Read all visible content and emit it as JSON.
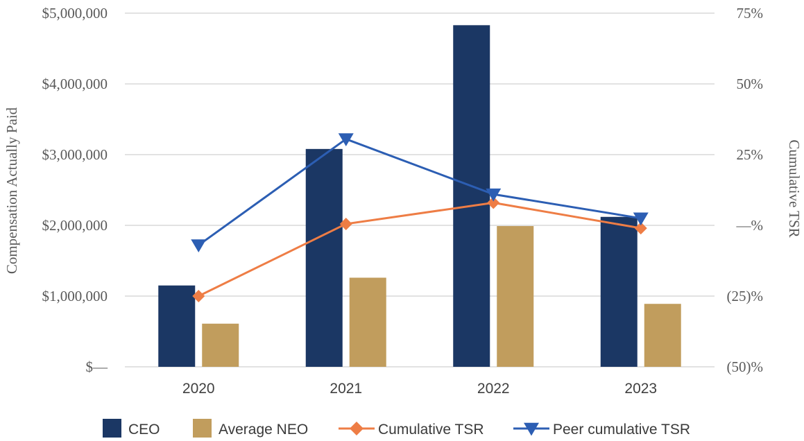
{
  "chart_data": {
    "type": "bar",
    "categories": [
      "2020",
      "2021",
      "2022",
      "2023"
    ],
    "bar_series": [
      {
        "name": "CEO",
        "values": [
          1150000,
          3080000,
          4830000,
          2120000
        ],
        "color": "#1b3764"
      },
      {
        "name": "Average NEO",
        "values": [
          610000,
          1260000,
          1990000,
          890000
        ],
        "color": "#c19d5d"
      }
    ],
    "line_series": [
      {
        "name": "Cumulative TSR",
        "values": [
          -25,
          0.5,
          8,
          -1
        ],
        "color": "#ee7d45",
        "marker": "diamond"
      },
      {
        "name": "Peer cumulative TSR",
        "values": [
          -7,
          30.5,
          11,
          2.5
        ],
        "color": "#2c5eb3",
        "marker": "triangle-down"
      }
    ],
    "ylabel": "Compensation Actually Paid",
    "y2label": "Cumulative TSR",
    "ylim": [
      0,
      5000000
    ],
    "y2lim": [
      -50,
      75
    ],
    "yticks": [
      {
        "value": 0,
        "label": "$—"
      },
      {
        "value": 1000000,
        "label": "$1,000,000"
      },
      {
        "value": 2000000,
        "label": "$2,000,000"
      },
      {
        "value": 3000000,
        "label": "$3,000,000"
      },
      {
        "value": 4000000,
        "label": "$4,000,000"
      },
      {
        "value": 5000000,
        "label": "$5,000,000"
      }
    ],
    "y2ticks": [
      {
        "value": -50,
        "label": "(50)%"
      },
      {
        "value": -25,
        "label": "(25)%"
      },
      {
        "value": 0,
        "label": "—%"
      },
      {
        "value": 25,
        "label": "25%"
      },
      {
        "value": 50,
        "label": "50%"
      },
      {
        "value": 75,
        "label": "75%"
      }
    ],
    "grid": true,
    "gridColor": "#d9d9d9",
    "legend_position": "bottom"
  }
}
